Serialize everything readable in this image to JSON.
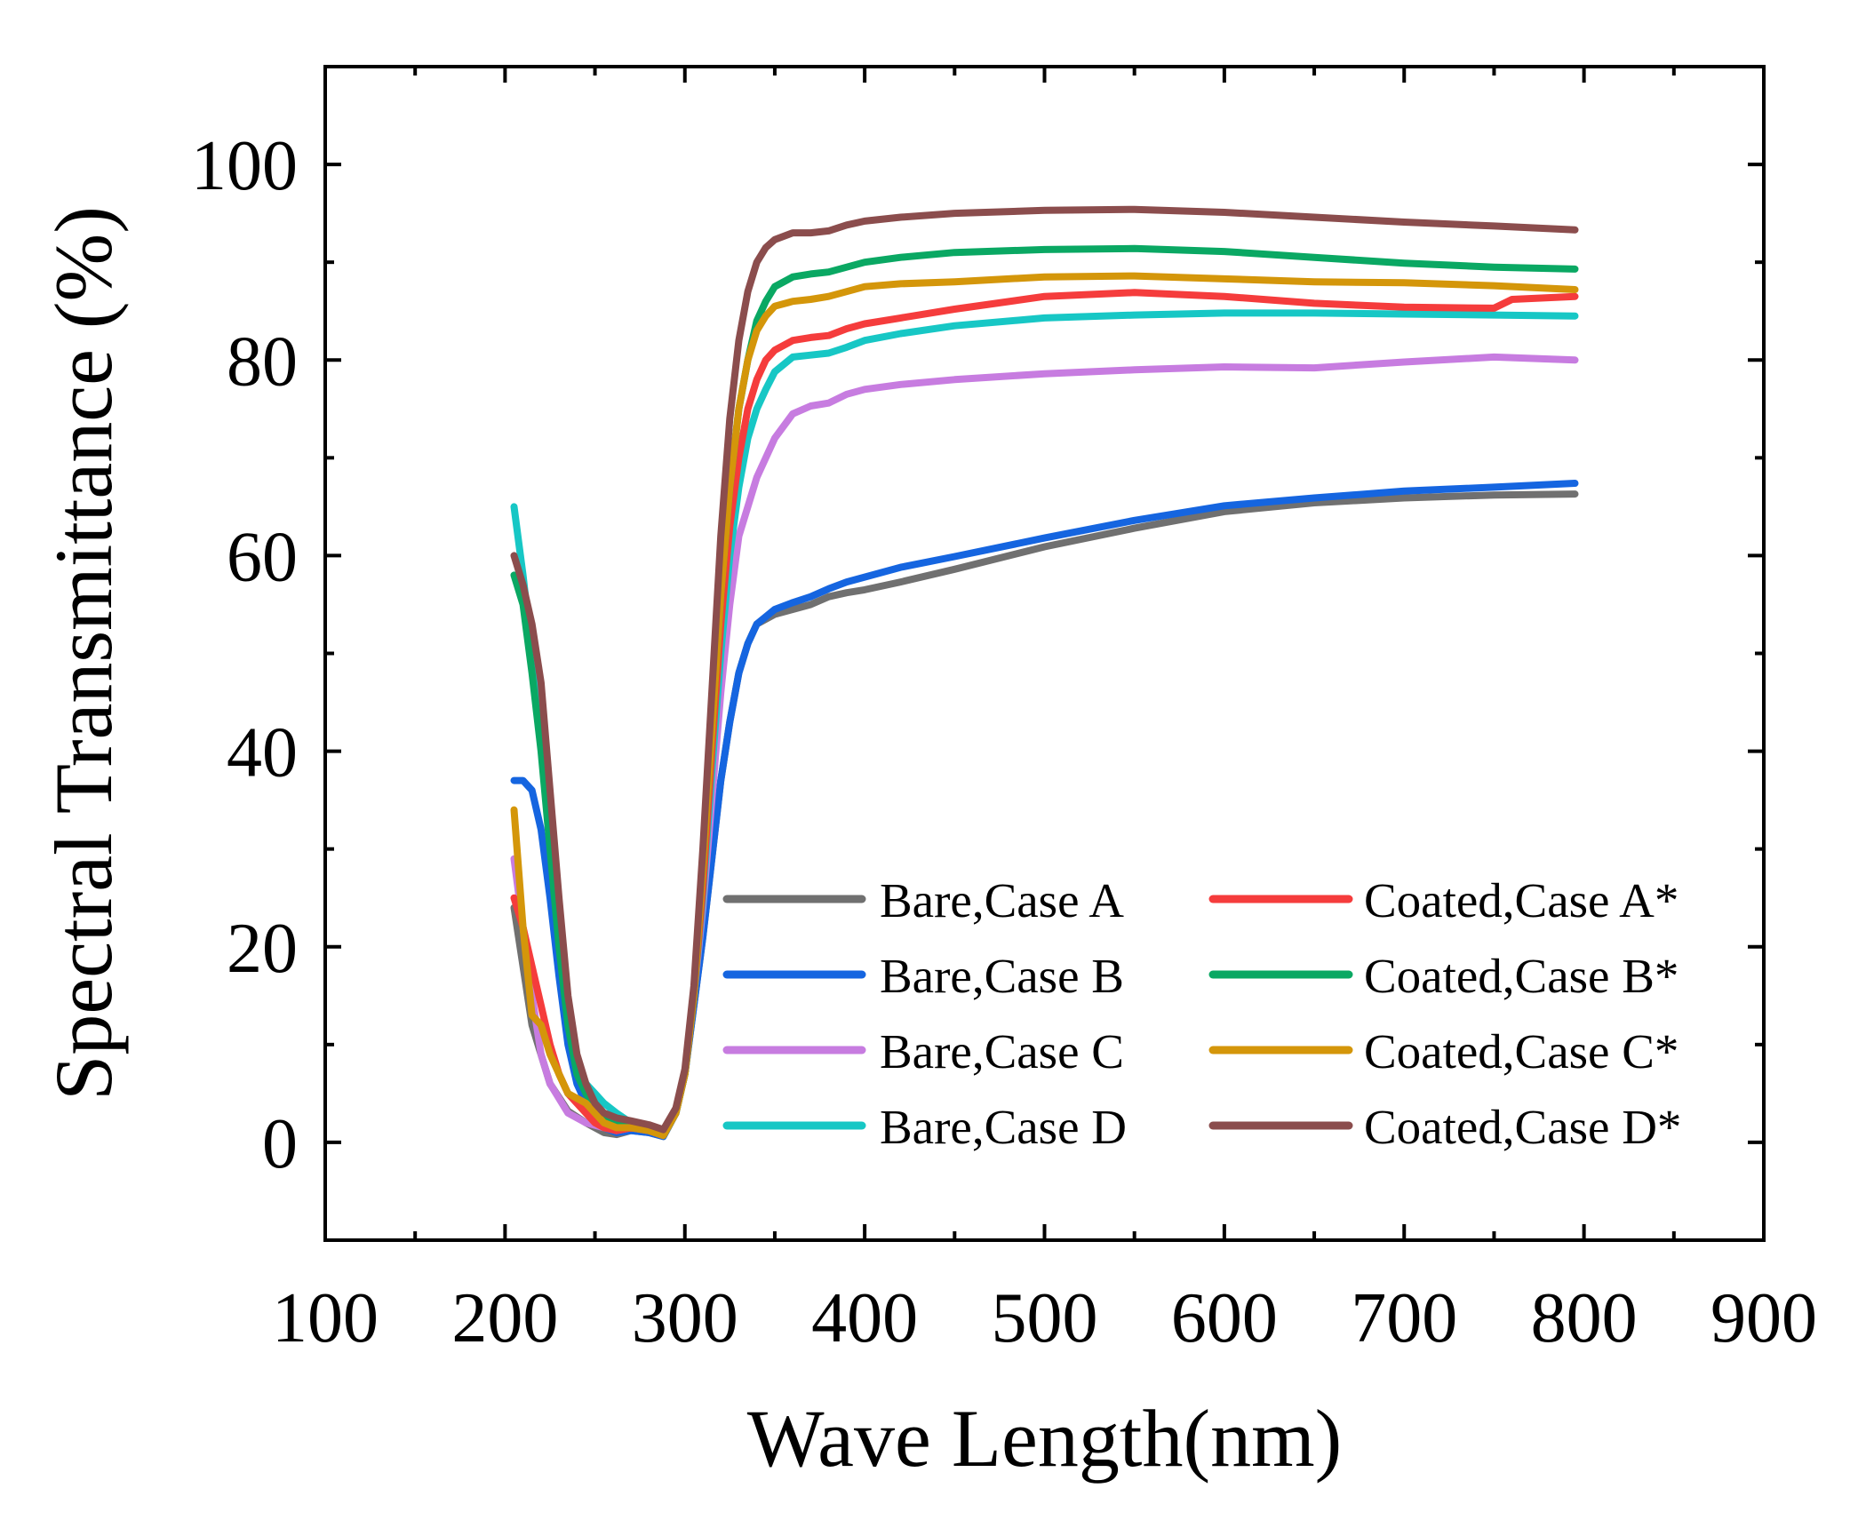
{
  "chart_data": {
    "type": "line",
    "xlabel": "Wave Length(nm)",
    "ylabel": "Spectral Transmittance (%)",
    "xlim": [
      100,
      900
    ],
    "ylim": [
      -10,
      110
    ],
    "xticks": [
      100,
      200,
      300,
      400,
      500,
      600,
      700,
      800,
      900
    ],
    "yticks": [
      0,
      20,
      40,
      60,
      80,
      100
    ],
    "grid": false,
    "legend_position": "lower-right",
    "series": [
      {
        "name": "Bare,Case A",
        "color": "#707070",
        "x": [
          205,
          215,
          225,
          235,
          245,
          255,
          262,
          270,
          280,
          288,
          295,
          300,
          305,
          310,
          315,
          320,
          325,
          330,
          335,
          340,
          350,
          360,
          370,
          380,
          390,
          400,
          420,
          450,
          500,
          550,
          600,
          650,
          700,
          750,
          795
        ],
        "y": [
          24,
          12,
          6,
          3.2,
          2,
          1.0,
          0.8,
          1.2,
          1.0,
          0.6,
          3,
          7,
          14,
          21,
          29,
          37,
          43,
          48,
          51,
          53,
          54,
          54.5,
          55,
          55.8,
          56.2,
          56.5,
          57.3,
          58.6,
          60.9,
          62.8,
          64.5,
          65.4,
          65.9,
          66.2,
          66.3
        ]
      },
      {
        "name": "Bare,Case B",
        "color": "#1565e0",
        "x": [
          205,
          210,
          215,
          220,
          225,
          230,
          235,
          240,
          245,
          250,
          255,
          262,
          270,
          280,
          288,
          295,
          300,
          305,
          310,
          315,
          320,
          325,
          330,
          335,
          340,
          350,
          360,
          370,
          380,
          390,
          400,
          420,
          450,
          500,
          550,
          600,
          650,
          700,
          750,
          795
        ],
        "y": [
          37,
          37,
          36,
          32,
          25,
          17,
          10,
          6,
          4,
          2.5,
          1.5,
          1.0,
          1.2,
          1.0,
          0.6,
          3,
          7,
          14,
          21,
          29,
          37,
          43,
          48,
          51,
          53,
          54.5,
          55.2,
          55.8,
          56.6,
          57.3,
          57.8,
          58.8,
          59.9,
          61.8,
          63.6,
          65.1,
          65.9,
          66.6,
          67.0,
          67.4
        ]
      },
      {
        "name": "Bare,Case C",
        "color": "#c77ce0",
        "x": [
          205,
          210,
          215,
          220,
          225,
          235,
          245,
          255,
          262,
          270,
          280,
          288,
          295,
          300,
          305,
          310,
          315,
          320,
          325,
          330,
          340,
          350,
          360,
          370,
          380,
          390,
          400,
          420,
          450,
          500,
          550,
          600,
          650,
          700,
          750,
          795
        ],
        "y": [
          29,
          22,
          15,
          9,
          6,
          3,
          2,
          1.5,
          1.2,
          1.5,
          1.2,
          0.7,
          3,
          7,
          15,
          24,
          35,
          46,
          55,
          62,
          68,
          72,
          74.5,
          75.3,
          75.6,
          76.5,
          77,
          77.5,
          78,
          78.6,
          79,
          79.3,
          79.2,
          79.8,
          80.3,
          80.0
        ]
      },
      {
        "name": "Bare,Case D",
        "color": "#17c7c5",
        "x": [
          205,
          210,
          215,
          220,
          225,
          230,
          235,
          240,
          245,
          250,
          255,
          262,
          270,
          280,
          288,
          295,
          300,
          305,
          310,
          315,
          320,
          325,
          330,
          335,
          340,
          345,
          350,
          360,
          370,
          380,
          390,
          400,
          420,
          450,
          500,
          550,
          600,
          650,
          700,
          750,
          795
        ],
        "y": [
          65,
          58,
          50,
          42,
          33,
          23,
          14,
          8,
          6,
          5,
          4,
          3,
          2,
          1.5,
          0.7,
          3,
          7,
          15,
          25,
          38,
          50,
          60,
          67,
          72,
          75,
          77,
          78.8,
          80.3,
          80.5,
          80.7,
          81.3,
          82,
          82.7,
          83.5,
          84.3,
          84.6,
          84.8,
          84.8,
          84.7,
          84.6,
          84.5
        ]
      },
      {
        "name": "Coated,Case A*",
        "color": "#f53c3c",
        "x": [
          205,
          210,
          215,
          220,
          225,
          230,
          235,
          240,
          245,
          250,
          255,
          262,
          270,
          280,
          288,
          295,
          300,
          305,
          310,
          315,
          320,
          325,
          330,
          335,
          340,
          345,
          350,
          360,
          370,
          380,
          390,
          400,
          420,
          450,
          500,
          550,
          600,
          650,
          700,
          750,
          760,
          795
        ],
        "y": [
          25,
          22,
          18,
          14,
          10,
          7,
          5,
          4,
          3,
          2,
          1.5,
          1.2,
          1.5,
          1.2,
          0.7,
          3,
          7,
          15,
          26,
          40,
          53,
          63,
          70,
          75,
          78,
          80,
          81,
          82,
          82.3,
          82.5,
          83.2,
          83.7,
          84.3,
          85.2,
          86.5,
          86.9,
          86.5,
          85.8,
          85.4,
          85.3,
          86.2,
          86.5
        ]
      },
      {
        "name": "Coated,Case B*",
        "color": "#0aa863",
        "x": [
          205,
          210,
          215,
          220,
          225,
          230,
          235,
          240,
          245,
          250,
          255,
          262,
          270,
          280,
          288,
          295,
          300,
          305,
          310,
          315,
          320,
          325,
          330,
          335,
          340,
          345,
          350,
          360,
          370,
          380,
          390,
          400,
          420,
          450,
          500,
          550,
          600,
          650,
          700,
          750,
          795
        ],
        "y": [
          58,
          55,
          48,
          40,
          30,
          20,
          12,
          7,
          5,
          3.5,
          2.5,
          2,
          1.8,
          1.3,
          0.7,
          3,
          7,
          15,
          28,
          42,
          56,
          67,
          75,
          80,
          84,
          86,
          87.5,
          88.5,
          88.8,
          89,
          89.5,
          90,
          90.5,
          91,
          91.3,
          91.4,
          91.1,
          90.5,
          89.9,
          89.5,
          89.3
        ]
      },
      {
        "name": "Coated,Case C*",
        "color": "#d4960a",
        "x": [
          205,
          210,
          215,
          220,
          225,
          230,
          235,
          240,
          245,
          250,
          255,
          262,
          270,
          280,
          288,
          295,
          300,
          305,
          310,
          315,
          320,
          325,
          330,
          335,
          340,
          345,
          350,
          360,
          370,
          380,
          390,
          400,
          420,
          450,
          500,
          550,
          600,
          650,
          700,
          750,
          795
        ],
        "y": [
          34,
          22,
          13,
          12,
          9,
          7,
          5,
          4.5,
          4,
          3,
          2,
          1.5,
          1.5,
          1.2,
          0.7,
          3,
          7,
          15,
          28,
          42,
          56,
          67,
          75,
          80,
          83,
          84.5,
          85.5,
          86,
          86.2,
          86.5,
          87,
          87.5,
          87.8,
          88,
          88.5,
          88.6,
          88.3,
          88,
          87.9,
          87.6,
          87.2
        ]
      },
      {
        "name": "Coated,Case D*",
        "color": "#8b4d4d",
        "x": [
          205,
          210,
          215,
          220,
          225,
          230,
          235,
          240,
          245,
          250,
          255,
          262,
          270,
          280,
          288,
          295,
          300,
          305,
          310,
          315,
          320,
          325,
          330,
          335,
          340,
          345,
          350,
          360,
          370,
          380,
          390,
          400,
          420,
          450,
          500,
          550,
          600,
          650,
          700,
          750,
          795
        ],
        "y": [
          60,
          57,
          53,
          47,
          36,
          25,
          15,
          9,
          6,
          4,
          3,
          2.5,
          2.2,
          1.8,
          1.3,
          3.5,
          7.5,
          16,
          30,
          46,
          62,
          74,
          82,
          87,
          90,
          91.5,
          92.3,
          93,
          93,
          93.2,
          93.8,
          94.2,
          94.6,
          95,
          95.3,
          95.4,
          95.1,
          94.6,
          94.1,
          93.7,
          93.3
        ]
      }
    ]
  }
}
